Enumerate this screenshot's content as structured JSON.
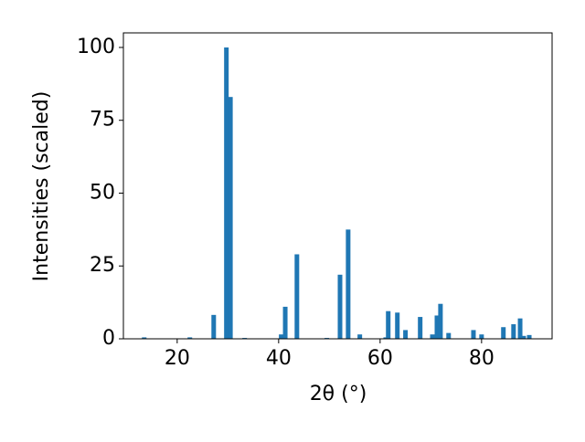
{
  "chart_data": {
    "type": "bar",
    "x_label": "2θ (°)",
    "y_label": "Intensities (scaled)",
    "x": [
      13.5,
      22.5,
      27.2,
      29.7,
      30.5,
      33.3,
      40.5,
      41.3,
      43.6,
      49.5,
      52.1,
      53.7,
      56,
      61.1,
      61.6,
      63.4,
      65,
      67.9,
      70.3,
      71.2,
      71.9,
      73.5,
      78.4,
      80,
      84.3,
      86.3,
      87.6,
      88.3,
      89.4
    ],
    "values": [
      0.5,
      0.5,
      8.2,
      100,
      83,
      0.3,
      1.5,
      11,
      29,
      0.3,
      22,
      37.5,
      1.5,
      0.5,
      9.5,
      9,
      3,
      7.5,
      1.5,
      8,
      12,
      2,
      3,
      1.5,
      4,
      5,
      7,
      1,
      1.3
    ],
    "color": "#1f77b4",
    "xlim": [
      9.4,
      93.9
    ],
    "ylim": [
      0,
      105
    ],
    "xticks": [
      20,
      40,
      60,
      80
    ],
    "yticks": [
      0,
      25,
      50,
      75,
      100
    ],
    "grid": false
  }
}
